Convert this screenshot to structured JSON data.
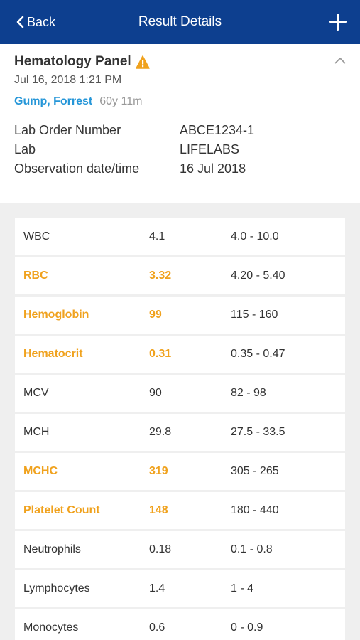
{
  "navbar": {
    "back_label": "Back",
    "title": "Result Details"
  },
  "panel": {
    "title": "Hematology Panel",
    "date": "Jul 16, 2018 1:21 PM",
    "patient_name": "Gump, Forrest",
    "patient_age": "60y 11m"
  },
  "info": [
    {
      "label": "Lab Order Number",
      "value": "ABCE1234-1"
    },
    {
      "label": "Lab",
      "value": "LIFELABS"
    },
    {
      "label": "Observation date/time",
      "value": "16 Jul 2018"
    }
  ],
  "results": [
    {
      "name": "WBC",
      "value": "4.1",
      "range": "4.0 - 10.0",
      "abnormal": false
    },
    {
      "name": "RBC",
      "value": "3.32",
      "range": "4.20 - 5.40",
      "abnormal": true
    },
    {
      "name": "Hemoglobin",
      "value": "99",
      "range": "115 - 160",
      "abnormal": true
    },
    {
      "name": "Hematocrit",
      "value": "0.31",
      "range": "0.35 - 0.47",
      "abnormal": true
    },
    {
      "name": "MCV",
      "value": "90",
      "range": "82 - 98",
      "abnormal": false
    },
    {
      "name": "MCH",
      "value": "29.8",
      "range": "27.5 - 33.5",
      "abnormal": false
    },
    {
      "name": "MCHC",
      "value": "319",
      "range": "305 - 265",
      "abnormal": true
    },
    {
      "name": "Platelet Count",
      "value": "148",
      "range": "180 - 440",
      "abnormal": true
    },
    {
      "name": "Neutrophils",
      "value": "0.18",
      "range": "0.1 - 0.8",
      "abnormal": false
    },
    {
      "name": "Lymphocytes",
      "value": "1.4",
      "range": "1 - 4",
      "abnormal": false
    },
    {
      "name": "Monocytes",
      "value": "0.6",
      "range": "0 - 0.9",
      "abnormal": false
    }
  ],
  "colors": {
    "navbar": "#0d3f8f",
    "abnormal": "#f0a21e",
    "link": "#2596d8"
  },
  "icons": {
    "back": "chevron-left-icon",
    "add": "plus-icon",
    "warning": "warning-icon",
    "collapse": "chevron-up-icon"
  }
}
